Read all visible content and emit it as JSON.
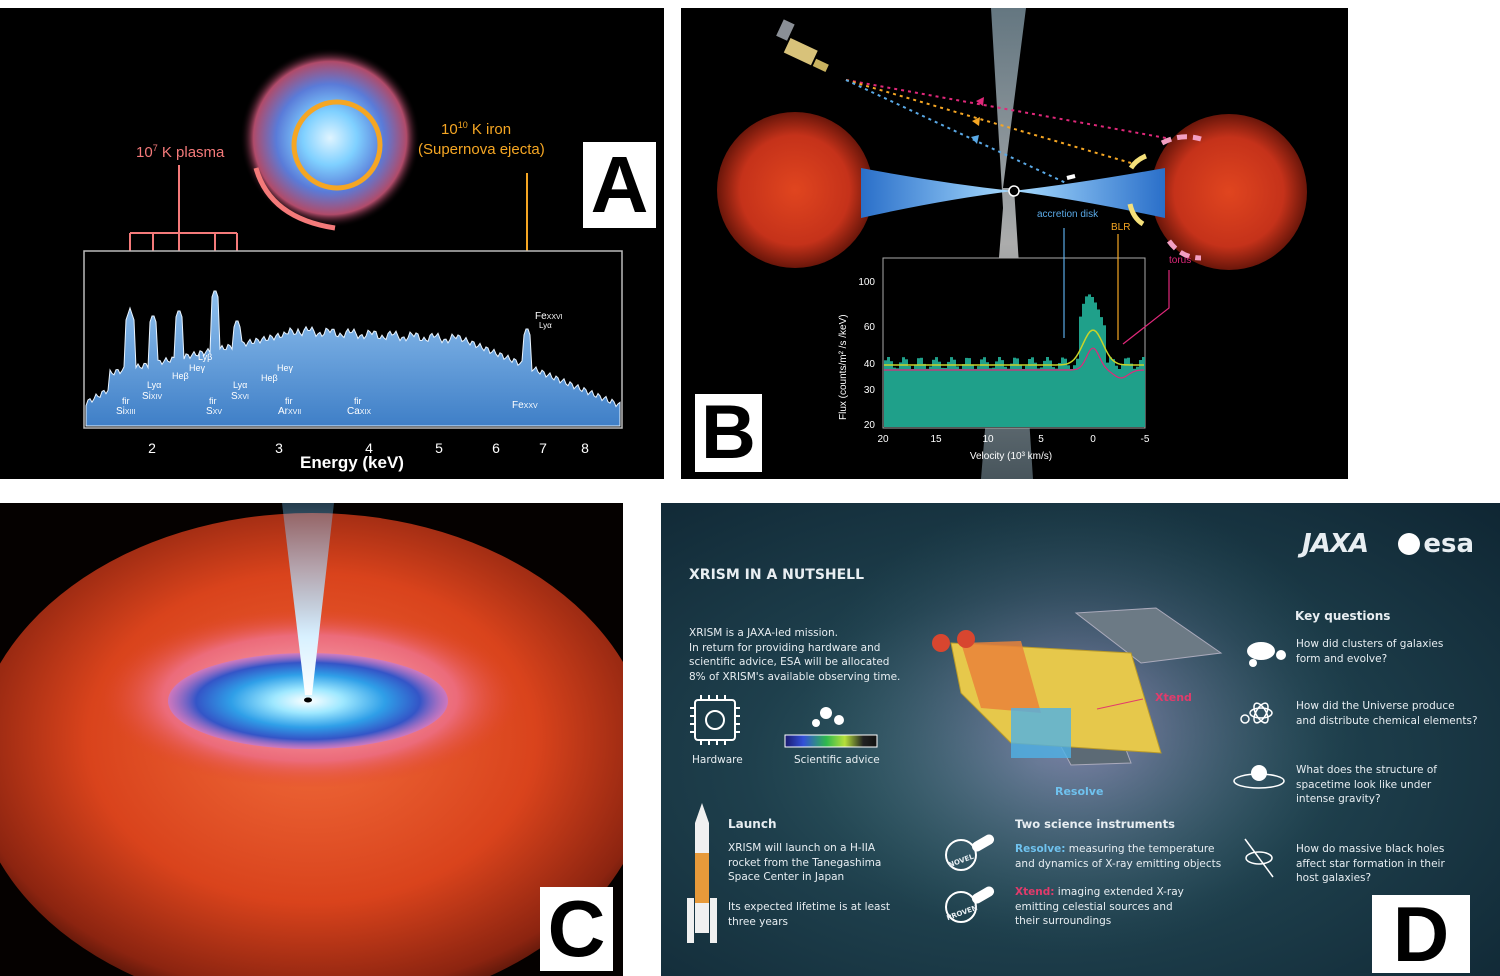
{
  "panelA": {
    "letter": "A",
    "plasma_label": "10",
    "plasma_exp": "7",
    "plasma_suffix": " K plasma",
    "iron_label": "10",
    "iron_exp": "10",
    "iron_suffix": " K iron",
    "iron_sub": "(Supernova ejecta)",
    "xlabel": "Energy (keV)",
    "ticks": [
      "2",
      "3",
      "4",
      "5",
      "6",
      "7",
      "8"
    ],
    "lines": {
      "six_fir": "fir",
      "six": "Si",
      "six_ion": "XIII",
      "sixiv_ly": "Lyα",
      "sixiv": "Si",
      "sixiv_ion": "XIV",
      "heb": "Heβ",
      "lyb": "Lyβ",
      "hey": "Heγ",
      "sxv_fir": "fir",
      "sxv": "S",
      "sxv_ion": "XV",
      "sxvi_ly": "Lyα",
      "sxvi": "S",
      "sxvi_ion": "XVI",
      "heb2": "Heβ",
      "hey2": "Heγ",
      "arxvii_fir": "fir",
      "ar": "Ar",
      "ar_ion": "XVII",
      "caxix_fir": "fir",
      "ca": "Ca",
      "ca_ion": "XIX",
      "fexxv": "Fe",
      "fexxv_ion": "XXV",
      "fexxvi": "Fe",
      "fexxvi_ion": "XXVI",
      "fexxvi_ly": "Lyα"
    },
    "colors": {
      "plasma": "#f47a7a",
      "iron": "#f5a623",
      "spectrum": "#6fa8dc"
    }
  },
  "panelB": {
    "letter": "B",
    "accretion": "accretion disk",
    "blr": "BLR",
    "torus": "torus",
    "ylabel": "Flux  (counts/m² /s /keV)",
    "xlabel": "Velocity  (10³ km/s)",
    "yticks": [
      "100",
      "60",
      "40",
      "30",
      "20"
    ],
    "xticks": [
      "20",
      "15",
      "10",
      "5",
      "0",
      "-5"
    ],
    "colors": {
      "accretion": "#5aa9e6",
      "blr": "#f5a623",
      "torus": "#e0287a",
      "hist": "#1fa08a"
    }
  },
  "panelC": {
    "letter": "C"
  },
  "panelD": {
    "letter": "D",
    "jaxa": "JAXA",
    "esa": "esa",
    "title": "XRISM IN A NUTSHELL",
    "intro": [
      "XRISM is a JAXA-led mission.",
      "In return for providing hardware and",
      "scientific advice, ESA will be allocated",
      "8% of XRISM's available observing time."
    ],
    "hardware": "Hardware",
    "advice": "Scientific advice",
    "launch_title": "Launch",
    "launch_text": [
      "XRISM will launch on a H-IIA",
      "rocket from the Tanegashima",
      "Space Center in Japan"
    ],
    "lifetime": [
      "Its expected lifetime is at least",
      "three years"
    ],
    "xtend": "Xtend",
    "resolve": "Resolve",
    "instr_title": "Two science instruments",
    "novel": "NOVEL",
    "proven": "PROVEN",
    "resolve_name": "Resolve:",
    "resolve_text": [
      " measuring the temperature",
      "and dynamics of X-ray emitting objects"
    ],
    "xtend_name": "Xtend:",
    "xtend_text": [
      " imaging extended X-ray",
      "emitting celestial sources and",
      "their surroundings"
    ],
    "kq_title": "Key questions",
    "questions": [
      [
        "How did clusters of galaxies",
        "form and evolve?"
      ],
      [
        "How did the Universe produce",
        "and distribute chemical elements?"
      ],
      [
        "What does the structure of",
        "spacetime look like under",
        "intense gravity?"
      ],
      [
        "How do massive black holes",
        "affect star formation in their",
        "host galaxies?"
      ]
    ],
    "colors": {
      "accent": "#e23b6b",
      "resolve": "#6fc2ef",
      "xtend": "#e23b6b"
    }
  }
}
